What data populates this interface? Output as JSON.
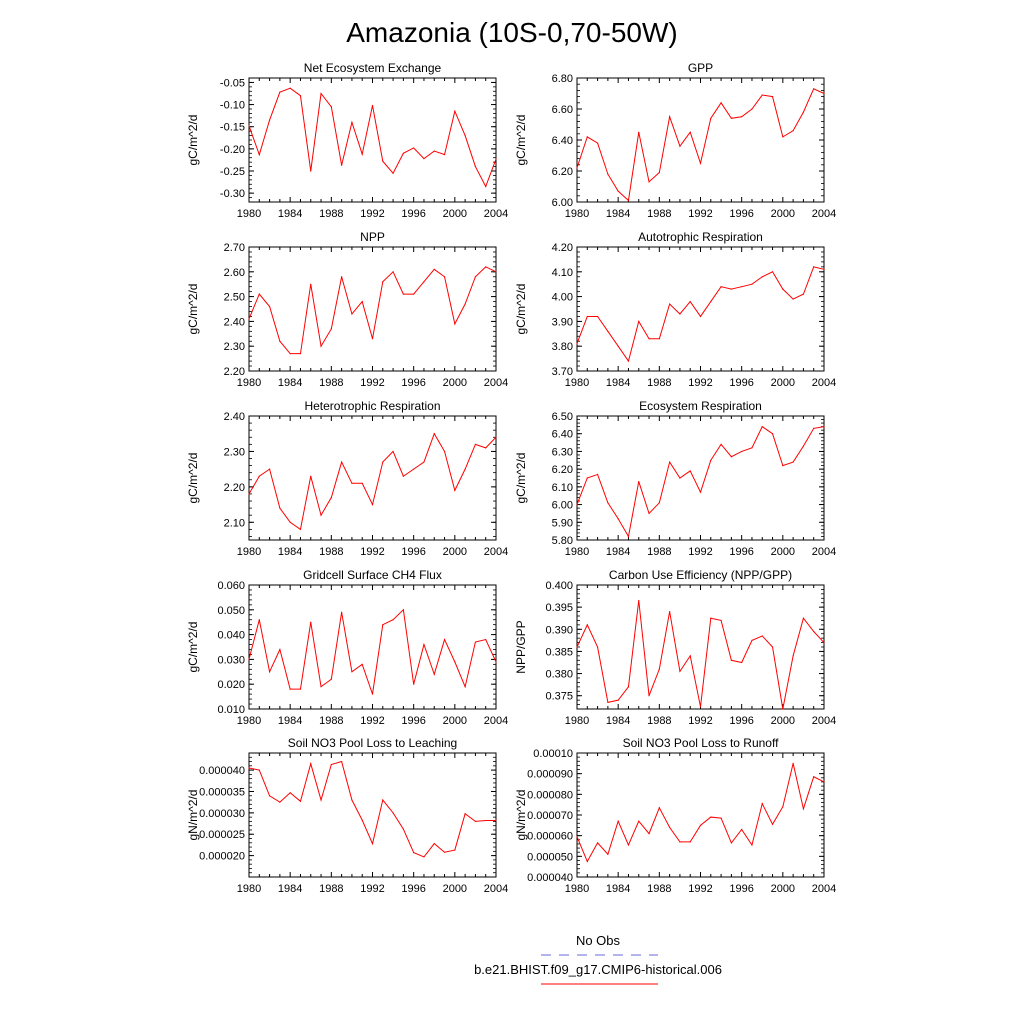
{
  "title": "Amazonia (10S-0,70-50W)",
  "legend": {
    "items": [
      {
        "label": "No Obs",
        "color": "#6a6ad8",
        "style": "dashed"
      },
      {
        "label": "b.e21.BHIST.f09_g17.CMIP6-historical.006",
        "color": "#ff0000",
        "style": "solid"
      }
    ]
  },
  "chart_data": [
    {
      "type": "line",
      "title": "Net Ecosystem Exchange",
      "xlabel": "",
      "ylabel": "gC/m^2/d",
      "xlim": [
        1980,
        2004
      ],
      "ylim": [
        -0.32,
        -0.04
      ],
      "x_ticks": [
        "1980",
        "1984",
        "1988",
        "1992",
        "1996",
        "2000",
        "2004"
      ],
      "y_ticks": [
        "-0.05",
        "-0.10",
        "-0.15",
        "-0.20",
        "-0.25",
        "-0.30"
      ],
      "series": [
        {
          "color": "#ff0000",
          "x": [
            1980,
            1981,
            1982,
            1983,
            1984,
            1985,
            1986,
            1987,
            1988,
            1989,
            1990,
            1991,
            1992,
            1993,
            1994,
            1995,
            1996,
            1997,
            1998,
            1999,
            2000,
            2001,
            2002,
            2003,
            2004
          ],
          "y": [
            -0.148,
            -0.213,
            -0.135,
            -0.072,
            -0.063,
            -0.08,
            -0.25,
            -0.075,
            -0.105,
            -0.237,
            -0.14,
            -0.212,
            -0.102,
            -0.228,
            -0.255,
            -0.21,
            -0.198,
            -0.222,
            -0.205,
            -0.213,
            -0.115,
            -0.17,
            -0.24,
            -0.285,
            -0.223
          ]
        }
      ]
    },
    {
      "type": "line",
      "title": "GPP",
      "xlabel": "",
      "ylabel": "gC/m^2/d",
      "xlim": [
        1980,
        2004
      ],
      "ylim": [
        6.0,
        6.8
      ],
      "x_ticks": [
        "1980",
        "1984",
        "1988",
        "1992",
        "1996",
        "2000",
        "2004"
      ],
      "y_ticks": [
        "6.00",
        "6.20",
        "6.40",
        "6.60",
        "6.80"
      ],
      "series": [
        {
          "color": "#ff0000",
          "x": [
            1980,
            1981,
            1982,
            1983,
            1984,
            1985,
            1986,
            1987,
            1988,
            1989,
            1990,
            1991,
            1992,
            1993,
            1994,
            1995,
            1996,
            1997,
            1998,
            1999,
            2000,
            2001,
            2002,
            2003,
            2004
          ],
          "y": [
            6.22,
            6.42,
            6.38,
            6.18,
            6.07,
            6.01,
            6.45,
            6.13,
            6.19,
            6.55,
            6.36,
            6.45,
            6.25,
            6.54,
            6.64,
            6.54,
            6.55,
            6.6,
            6.69,
            6.68,
            6.42,
            6.46,
            6.58,
            6.73,
            6.7
          ]
        }
      ]
    },
    {
      "type": "line",
      "title": "NPP",
      "xlabel": "",
      "ylabel": "gC/m^2/d",
      "xlim": [
        1980,
        2004
      ],
      "ylim": [
        2.2,
        2.7
      ],
      "x_ticks": [
        "1980",
        "1984",
        "1988",
        "1992",
        "1996",
        "2000",
        "2004"
      ],
      "y_ticks": [
        "2.20",
        "2.30",
        "2.40",
        "2.50",
        "2.60",
        "2.70"
      ],
      "series": [
        {
          "color": "#ff0000",
          "x": [
            1980,
            1981,
            1982,
            1983,
            1984,
            1985,
            1986,
            1987,
            1988,
            1989,
            1990,
            1991,
            1992,
            1993,
            1994,
            1995,
            1996,
            1997,
            1998,
            1999,
            2000,
            2001,
            2002,
            2003,
            2004
          ],
          "y": [
            2.41,
            2.51,
            2.46,
            2.32,
            2.27,
            2.27,
            2.55,
            2.3,
            2.37,
            2.58,
            2.43,
            2.48,
            2.33,
            2.56,
            2.6,
            2.51,
            2.51,
            2.56,
            2.61,
            2.58,
            2.39,
            2.47,
            2.58,
            2.62,
            2.6
          ]
        }
      ]
    },
    {
      "type": "line",
      "title": "Autotrophic Respiration",
      "xlabel": "",
      "ylabel": "gC/m^2/d",
      "xlim": [
        1980,
        2004
      ],
      "ylim": [
        3.7,
        4.2
      ],
      "x_ticks": [
        "1980",
        "1984",
        "1988",
        "1992",
        "1996",
        "2000",
        "2004"
      ],
      "y_ticks": [
        "3.70",
        "3.80",
        "3.90",
        "4.00",
        "4.10",
        "4.20"
      ],
      "series": [
        {
          "color": "#ff0000",
          "x": [
            1980,
            1981,
            1982,
            1983,
            1984,
            1985,
            1986,
            1987,
            1988,
            1989,
            1990,
            1991,
            1992,
            1993,
            1994,
            1995,
            1996,
            1997,
            1998,
            1999,
            2000,
            2001,
            2002,
            2003,
            2004
          ],
          "y": [
            3.81,
            3.92,
            3.92,
            3.86,
            3.8,
            3.74,
            3.9,
            3.83,
            3.83,
            3.97,
            3.93,
            3.98,
            3.92,
            3.98,
            4.04,
            4.03,
            4.04,
            4.05,
            4.08,
            4.1,
            4.03,
            3.99,
            4.01,
            4.12,
            4.11
          ]
        }
      ]
    },
    {
      "type": "line",
      "title": "Heterotrophic Respiration",
      "xlabel": "",
      "ylabel": "gC/m^2/d",
      "xlim": [
        1980,
        2004
      ],
      "ylim": [
        2.05,
        2.4
      ],
      "x_ticks": [
        "1980",
        "1984",
        "1988",
        "1992",
        "1996",
        "2000",
        "2004"
      ],
      "y_ticks": [
        "2.10",
        "2.20",
        "2.30",
        "2.40"
      ],
      "series": [
        {
          "color": "#ff0000",
          "x": [
            1980,
            1981,
            1982,
            1983,
            1984,
            1985,
            1986,
            1987,
            1988,
            1989,
            1990,
            1991,
            1992,
            1993,
            1994,
            1995,
            1996,
            1997,
            1998,
            1999,
            2000,
            2001,
            2002,
            2003,
            2004
          ],
          "y": [
            2.18,
            2.23,
            2.25,
            2.14,
            2.1,
            2.08,
            2.23,
            2.12,
            2.17,
            2.27,
            2.21,
            2.21,
            2.15,
            2.27,
            2.3,
            2.23,
            2.25,
            2.27,
            2.35,
            2.3,
            2.19,
            2.25,
            2.32,
            2.31,
            2.34
          ]
        }
      ]
    },
    {
      "type": "line",
      "title": "Ecosystem Respiration",
      "xlabel": "",
      "ylabel": "gC/m^2/d",
      "xlim": [
        1980,
        2004
      ],
      "ylim": [
        5.8,
        6.5
      ],
      "x_ticks": [
        "1980",
        "1984",
        "1988",
        "1992",
        "1996",
        "2000",
        "2004"
      ],
      "y_ticks": [
        "5.80",
        "5.90",
        "6.00",
        "6.10",
        "6.20",
        "6.30",
        "6.40",
        "6.50"
      ],
      "series": [
        {
          "color": "#ff0000",
          "x": [
            1980,
            1981,
            1982,
            1983,
            1984,
            1985,
            1986,
            1987,
            1988,
            1989,
            1990,
            1991,
            1992,
            1993,
            1994,
            1995,
            1996,
            1997,
            1998,
            1999,
            2000,
            2001,
            2002,
            2003,
            2004
          ],
          "y": [
            6.0,
            6.15,
            6.17,
            6.01,
            5.92,
            5.82,
            6.13,
            5.95,
            6.01,
            6.24,
            6.15,
            6.19,
            6.07,
            6.25,
            6.34,
            6.27,
            6.3,
            6.32,
            6.44,
            6.4,
            6.22,
            6.24,
            6.33,
            6.43,
            6.44
          ]
        }
      ]
    },
    {
      "type": "line",
      "title": "Gridcell Surface CH4 Flux",
      "xlabel": "",
      "ylabel": "gC/m^2/d",
      "xlim": [
        1980,
        2004
      ],
      "ylim": [
        0.01,
        0.06
      ],
      "x_ticks": [
        "1980",
        "1984",
        "1988",
        "1992",
        "1996",
        "2000",
        "2004"
      ],
      "y_ticks": [
        "0.010",
        "0.020",
        "0.030",
        "0.040",
        "0.050",
        "0.060"
      ],
      "series": [
        {
          "color": "#ff0000",
          "x": [
            1980,
            1981,
            1982,
            1983,
            1984,
            1985,
            1986,
            1987,
            1988,
            1989,
            1990,
            1991,
            1992,
            1993,
            1994,
            1995,
            1996,
            1997,
            1998,
            1999,
            2000,
            2001,
            2002,
            2003,
            2004
          ],
          "y": [
            0.03,
            0.046,
            0.025,
            0.034,
            0.018,
            0.018,
            0.045,
            0.019,
            0.022,
            0.049,
            0.025,
            0.028,
            0.016,
            0.044,
            0.046,
            0.05,
            0.02,
            0.036,
            0.024,
            0.038,
            0.029,
            0.019,
            0.037,
            0.038,
            0.029
          ]
        }
      ]
    },
    {
      "type": "line",
      "title": "Carbon Use Efficiency (NPP/GPP)",
      "xlabel": "",
      "ylabel": "NPP/GPP",
      "xlim": [
        1980,
        2004
      ],
      "ylim": [
        0.372,
        0.4
      ],
      "x_ticks": [
        "1980",
        "1984",
        "1988",
        "1992",
        "1996",
        "2000",
        "2004"
      ],
      "y_ticks": [
        "0.375",
        "0.380",
        "0.385",
        "0.390",
        "0.395",
        "0.400"
      ],
      "series": [
        {
          "color": "#ff0000",
          "x": [
            1980,
            1981,
            1982,
            1983,
            1984,
            1985,
            1986,
            1987,
            1988,
            1989,
            1990,
            1991,
            1992,
            1993,
            1994,
            1995,
            1996,
            1997,
            1998,
            1999,
            2000,
            2001,
            2002,
            2003,
            2004
          ],
          "y": [
            0.386,
            0.391,
            0.386,
            0.3735,
            0.374,
            0.377,
            0.3965,
            0.375,
            0.381,
            0.394,
            0.3805,
            0.384,
            0.3725,
            0.3925,
            0.392,
            0.383,
            0.3825,
            0.3875,
            0.3885,
            0.386,
            0.372,
            0.384,
            0.3925,
            0.3895,
            0.387
          ]
        }
      ]
    },
    {
      "type": "line",
      "title": "Soil NO3 Pool Loss to Leaching",
      "xlabel": "",
      "ylabel": "gN/m^2/d",
      "xlim": [
        1980,
        2004
      ],
      "ylim": [
        1.5e-05,
        4.4e-05
      ],
      "x_ticks": [
        "1980",
        "1984",
        "1988",
        "1992",
        "1996",
        "2000",
        "2004"
      ],
      "y_ticks": [
        "0.000020",
        "0.000025",
        "0.000030",
        "0.000035",
        "0.000040"
      ],
      "series": [
        {
          "color": "#ff0000",
          "x": [
            1980,
            1981,
            1982,
            1983,
            1984,
            1985,
            1986,
            1987,
            1988,
            1989,
            1990,
            1991,
            1992,
            1993,
            1994,
            1995,
            1996,
            1997,
            1998,
            1999,
            2000,
            2001,
            2002,
            2003,
            2004
          ],
          "y": [
            4.05e-05,
            4e-05,
            3.4e-05,
            3.25e-05,
            3.47e-05,
            3.27e-05,
            4.15e-05,
            3.3e-05,
            4.13e-05,
            4.2e-05,
            3.3e-05,
            2.83e-05,
            2.28e-05,
            3.3e-05,
            3e-05,
            2.62e-05,
            2.07e-05,
            1.97e-05,
            2.28e-05,
            2.08e-05,
            2.13e-05,
            2.98e-05,
            2.8e-05,
            2.82e-05,
            2.82e-05
          ]
        }
      ]
    },
    {
      "type": "line",
      "title": "Soil NO3 Pool Loss to Runoff",
      "xlabel": "",
      "ylabel": "gN/m^2/d",
      "xlim": [
        1980,
        2004
      ],
      "ylim": [
        4e-05,
        0.0001
      ],
      "x_ticks": [
        "1980",
        "1984",
        "1988",
        "1992",
        "1996",
        "2000",
        "2004"
      ],
      "y_ticks": [
        "0.000040",
        "0.000050",
        "0.000060",
        "0.000070",
        "0.000080",
        "0.000090",
        "0.00010"
      ],
      "series": [
        {
          "color": "#ff0000",
          "x": [
            1980,
            1981,
            1982,
            1983,
            1984,
            1985,
            1986,
            1987,
            1988,
            1989,
            1990,
            1991,
            1992,
            1993,
            1994,
            1995,
            1996,
            1997,
            1998,
            1999,
            2000,
            2001,
            2002,
            2003,
            2004
          ],
          "y": [
            5.95e-05,
            4.75e-05,
            5.65e-05,
            5.1e-05,
            6.7e-05,
            5.55e-05,
            6.7e-05,
            6.1e-05,
            7.35e-05,
            6.4e-05,
            5.7e-05,
            5.7e-05,
            6.5e-05,
            6.9e-05,
            6.85e-05,
            5.65e-05,
            6.3e-05,
            5.55e-05,
            7.55e-05,
            6.55e-05,
            7.4e-05,
            9.5e-05,
            7.3e-05,
            8.85e-05,
            8.6e-05
          ]
        }
      ]
    }
  ]
}
